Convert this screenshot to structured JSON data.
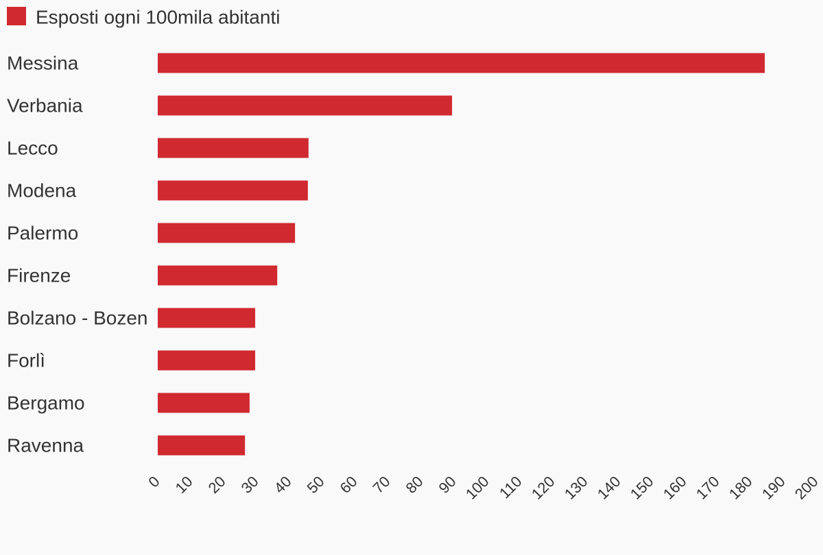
{
  "chart_data": {
    "type": "bar",
    "orientation": "horizontal",
    "series": [
      {
        "name": "Esposti ogni 100mila abitanti",
        "color": "#d0292f",
        "values": [
          184.4,
          89.4,
          45.8,
          45.6,
          41.7,
          36.3,
          29.6,
          29.6,
          27.9,
          26.5
        ]
      }
    ],
    "categories": [
      "Messina",
      "Verbania",
      "Lecco",
      "Modena",
      "Palermo",
      "Firenze",
      "Bolzano - Bozen",
      "Forlì",
      "Bergamo",
      "Ravenna"
    ],
    "xlim": [
      0,
      200
    ],
    "xticks": [
      0,
      10,
      20,
      30,
      40,
      50,
      60,
      70,
      80,
      90,
      100,
      110,
      120,
      130,
      140,
      150,
      160,
      170,
      180,
      190,
      200
    ],
    "grid": false,
    "legend": "top-left"
  }
}
